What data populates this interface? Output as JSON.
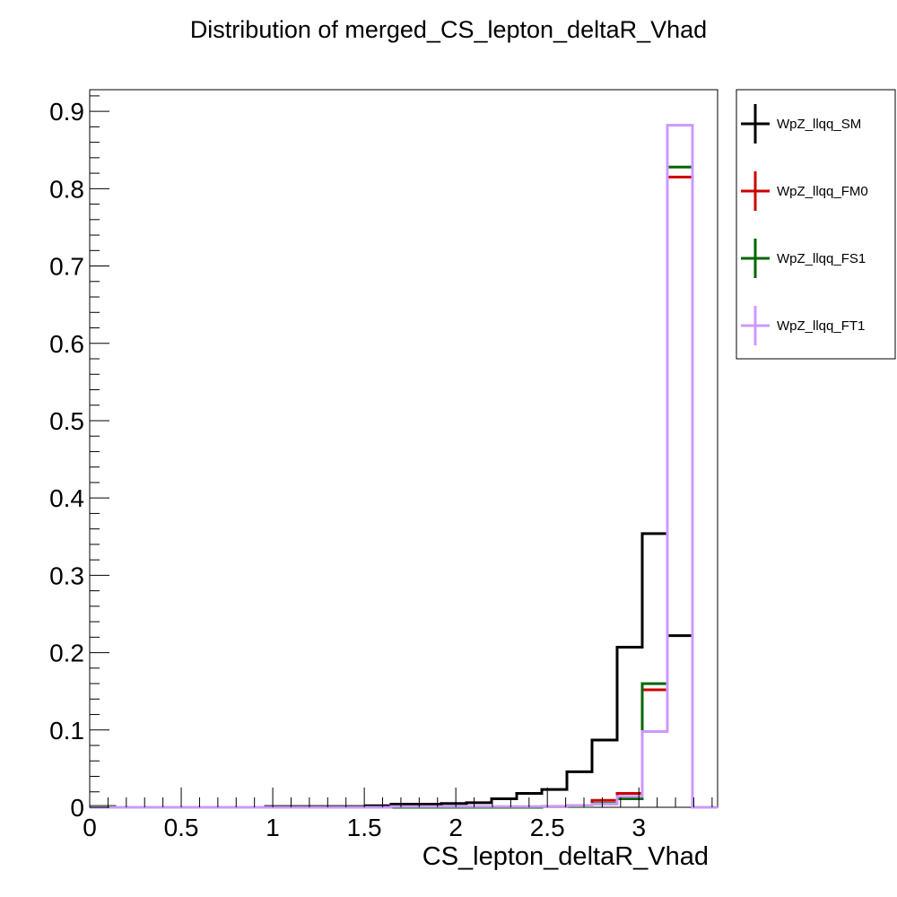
{
  "chart_data": {
    "type": "step-histogram",
    "title": "Distribution of merged_CS_lepton_deltaR_Vhad",
    "xlabel": "CS_lepton_deltaR_Vhad",
    "ylabel": "",
    "xlim": [
      0,
      3.43
    ],
    "ylim": [
      0,
      0.928
    ],
    "bin_width": 0.1372,
    "x_ticks": [
      {
        "value": 0,
        "label": "0"
      },
      {
        "value": 0.5,
        "label": "0.5"
      },
      {
        "value": 1,
        "label": "1"
      },
      {
        "value": 1.5,
        "label": "1.5"
      },
      {
        "value": 2,
        "label": "2"
      },
      {
        "value": 2.5,
        "label": "2.5"
      },
      {
        "value": 3,
        "label": "3"
      }
    ],
    "y_ticks": [
      {
        "value": 0,
        "label": "0"
      },
      {
        "value": 0.1,
        "label": "0.1"
      },
      {
        "value": 0.2,
        "label": "0.2"
      },
      {
        "value": 0.3,
        "label": "0.3"
      },
      {
        "value": 0.4,
        "label": "0.4"
      },
      {
        "value": 0.5,
        "label": "0.5"
      },
      {
        "value": 0.6,
        "label": "0.6"
      },
      {
        "value": 0.7,
        "label": "0.7"
      },
      {
        "value": 0.8,
        "label": "0.8"
      },
      {
        "value": 0.9,
        "label": "0.9"
      }
    ],
    "series": [
      {
        "name": "WpZ_llqq_SM",
        "color": "#000000",
        "values": [
          0.001,
          0.0,
          0.0,
          0.0,
          0.0,
          0.0,
          0.0,
          0.001,
          0.001,
          0.001,
          0.001,
          0.002,
          0.004,
          0.004,
          0.005,
          0.006,
          0.011,
          0.018,
          0.023,
          0.046,
          0.087,
          0.207,
          0.354,
          0.222,
          0.0
        ]
      },
      {
        "name": "WpZ_llqq_FM0",
        "color": "#cc0000",
        "values": [
          0.001,
          0.0,
          0.0,
          0.0,
          0.0,
          0.0,
          0.0,
          0.0,
          0.0,
          0.0,
          0.0,
          0.0,
          0.0,
          0.0,
          0.0,
          0.0,
          0.0,
          0.0,
          0.001,
          0.002,
          0.009,
          0.018,
          0.152,
          0.815,
          0.0
        ]
      },
      {
        "name": "WpZ_llqq_FS1",
        "color": "#006600",
        "values": [
          0.001,
          0.0,
          0.0,
          0.0,
          0.0,
          0.0,
          0.0,
          0.0,
          0.0,
          0.0,
          0.0,
          0.0,
          0.0,
          0.0,
          0.0,
          0.0,
          0.0,
          0.0,
          0.001,
          0.001,
          0.005,
          0.011,
          0.16,
          0.828,
          0.0
        ]
      },
      {
        "name": "WpZ_llqq_FT1",
        "color": "#cc99ff",
        "values": [
          0.0,
          0.0,
          0.0,
          0.0,
          0.0,
          0.0,
          0.0,
          0.0,
          0.0,
          0.0,
          0.0,
          0.0,
          0.001,
          0.001,
          0.001,
          0.001,
          0.001,
          0.001,
          0.001,
          0.002,
          0.004,
          0.014,
          0.098,
          0.882,
          0.0
        ]
      }
    ],
    "legend_position": "outside-right-top",
    "grid": false
  }
}
